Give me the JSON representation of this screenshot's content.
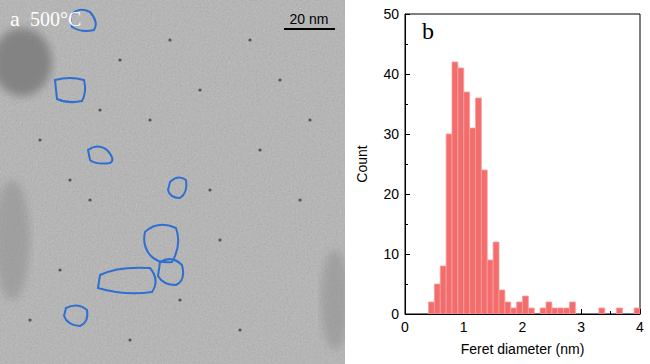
{
  "chart_data": {
    "type": "histogram",
    "title": "b",
    "bins": [
      0.4,
      0.5,
      0.6,
      0.7,
      0.8,
      0.9,
      1.0,
      1.1,
      1.2,
      1.3,
      1.4,
      1.5,
      1.6,
      1.7,
      1.8,
      1.9,
      2.0,
      2.1,
      2.2,
      2.3,
      2.4,
      2.5,
      2.6,
      2.7,
      2.8,
      2.9,
      3.0,
      3.1,
      3.2,
      3.3,
      3.4,
      3.5,
      3.6,
      3.7,
      3.8,
      3.9,
      4.0
    ],
    "values": [
      2,
      5,
      8,
      30,
      42,
      41,
      37,
      31,
      36,
      24,
      9,
      12,
      4,
      2,
      1,
      2,
      3,
      1,
      0,
      1,
      2,
      1,
      1,
      1,
      2,
      0,
      0,
      0,
      0,
      1,
      0,
      0,
      1,
      0,
      0,
      1
    ],
    "color": "#f46d6d",
    "xlabel": "Feret diameter (nm)",
    "ylabel": "Count",
    "xlim": [
      0,
      4
    ],
    "ylim": [
      0,
      50
    ],
    "xticks": [
      0,
      1,
      2,
      3,
      4
    ],
    "yticks": [
      0,
      10,
      20,
      30,
      40,
      50
    ],
    "grid": false
  },
  "image_panel": {
    "label": "a",
    "annotation": "500°C",
    "scale_bar": "20 nm"
  }
}
